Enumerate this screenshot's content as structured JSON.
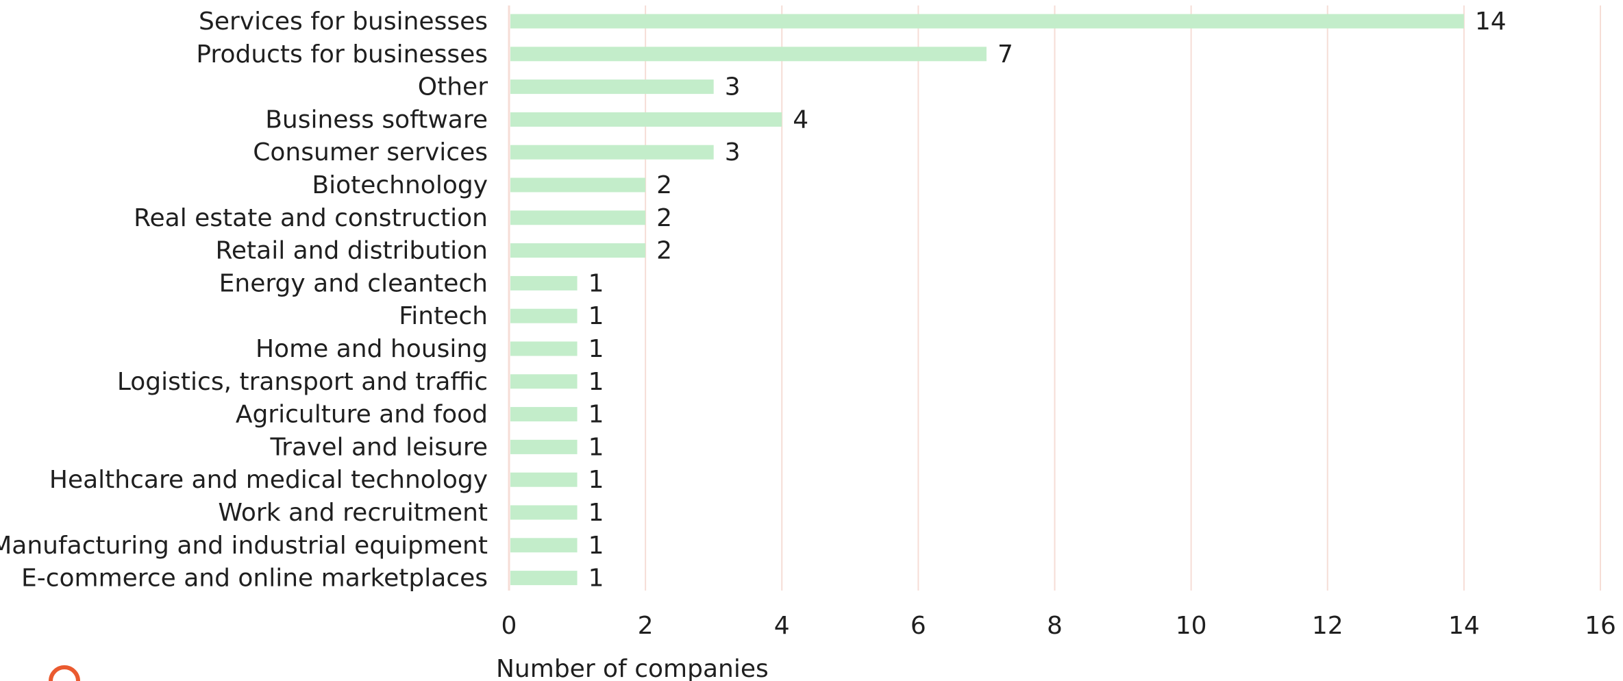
{
  "chart_data": {
    "type": "bar",
    "orientation": "horizontal",
    "categories": [
      "Services for businesses",
      "Products for businesses",
      "Other",
      "Business software",
      "Consumer services",
      "Biotechnology",
      "Real estate and construction",
      "Retail and distribution",
      "Energy and cleantech",
      "Fintech",
      "Home and housing",
      "Logistics, transport and traffic",
      "Agriculture and food",
      "Travel and leisure",
      "Healthcare and medical technology",
      "Work and recruitment",
      "Manufacturing and industrial equipment",
      "E-commerce and online marketplaces"
    ],
    "values": [
      14,
      7,
      3,
      4,
      3,
      2,
      2,
      2,
      1,
      1,
      1,
      1,
      1,
      1,
      1,
      1,
      1,
      1
    ],
    "xlabel": "Number of companies",
    "ylabel": "",
    "xlim": [
      0,
      16
    ],
    "xticks": [
      "0",
      "2",
      "4",
      "6",
      "8",
      "10",
      "12",
      "14",
      "16"
    ],
    "grid": "vertical",
    "bar_color": "#c3edca",
    "grid_color": "#f6ddd6",
    "data_labels": true
  }
}
